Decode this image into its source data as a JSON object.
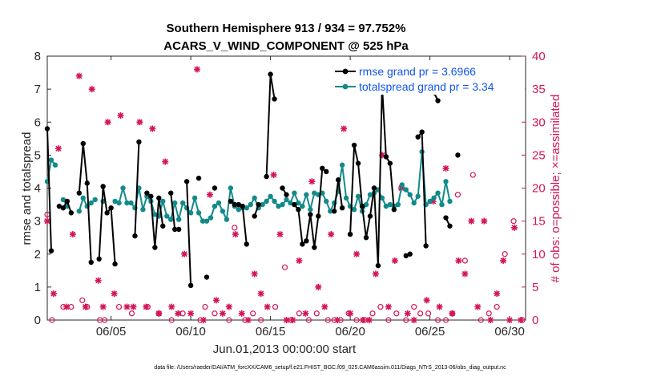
{
  "chart_data": {
    "type": "line",
    "title": "Southern Hemisphere 913 / 934 = 97.752%",
    "subtitle": "ACARS_V_WIND_COMPONENT @ 525 hPa",
    "xlabel": "Jun.01,2013 00:00:00 start",
    "ylabel": "rmse and totalspread",
    "ylabel_right": "# of obs: o=possible; ×=assimilated",
    "footnote": "data file: /Users/raeder/DAI/ATM_forcXX/CAM6_setup/f.e21.FHIST_BGC.f09_025.CAM6assim.011/Diags_NTrS_2013-06/obs_diag_output.nc",
    "xlim": [
      1,
      31
    ],
    "ylim": [
      0,
      8
    ],
    "ylim_right": [
      0,
      40
    ],
    "x_ticks": [
      5,
      10,
      15,
      20,
      25,
      30
    ],
    "x_tick_labels": [
      "06/05",
      "06/10",
      "06/15",
      "06/20",
      "06/25",
      "06/30"
    ],
    "y_ticks": [
      0,
      1,
      2,
      3,
      4,
      5,
      6,
      7,
      8
    ],
    "y_ticks_right": [
      0,
      5,
      10,
      15,
      20,
      25,
      30,
      35,
      40
    ],
    "colors": {
      "rmse": "#000000",
      "spread": "#138a8a",
      "obs": "#d4145a",
      "legend_text": "#1155ee"
    },
    "series": [
      {
        "name": "rmse grand pr = 3.6966",
        "marker": "filled-circle",
        "points": [
          [
            1.0,
            5.8
          ],
          [
            1.25,
            2.1
          ],
          [
            1.5,
            null
          ],
          [
            1.75,
            3.45
          ],
          [
            2.0,
            3.4
          ],
          [
            2.25,
            3.6
          ],
          [
            2.5,
            3.25
          ],
          [
            2.75,
            null
          ],
          [
            3.0,
            3.85
          ],
          [
            3.25,
            5.35
          ],
          [
            3.5,
            4.15
          ],
          [
            3.75,
            1.75
          ],
          [
            4.0,
            null
          ],
          [
            4.25,
            1.85
          ],
          [
            4.5,
            4.05
          ],
          [
            4.75,
            3.25
          ],
          [
            5.0,
            3.4
          ],
          [
            5.25,
            1.7
          ],
          [
            5.5,
            null
          ],
          [
            5.75,
            null
          ],
          [
            6.0,
            null
          ],
          [
            6.25,
            null
          ],
          [
            6.5,
            2.55
          ],
          [
            6.75,
            5.4
          ],
          [
            7.0,
            null
          ],
          [
            7.25,
            3.85
          ],
          [
            7.5,
            3.75
          ],
          [
            7.75,
            2.2
          ],
          [
            8.0,
            3.7
          ],
          [
            8.25,
            2.85
          ],
          [
            8.5,
            null
          ],
          [
            8.75,
            3.85
          ],
          [
            9.0,
            2.75
          ],
          [
            9.25,
            2.75
          ],
          [
            9.5,
            null
          ],
          [
            9.75,
            4.2
          ],
          [
            10.0,
            1.05
          ],
          [
            10.25,
            null
          ],
          [
            10.5,
            4.3
          ],
          [
            10.75,
            null
          ],
          [
            11.0,
            1.3
          ],
          [
            11.25,
            null
          ],
          [
            11.5,
            4.0
          ],
          [
            11.75,
            null
          ],
          [
            12.0,
            null
          ],
          [
            12.25,
            null
          ],
          [
            12.5,
            3.6
          ],
          [
            12.75,
            3.5
          ],
          [
            13.0,
            3.5
          ],
          [
            13.25,
            3.45
          ],
          [
            13.5,
            2.3
          ],
          [
            13.75,
            null
          ],
          [
            14.0,
            3.15
          ],
          [
            14.25,
            3.5
          ],
          [
            14.5,
            null
          ],
          [
            14.75,
            4.35
          ],
          [
            15.0,
            7.45
          ],
          [
            15.25,
            6.7
          ],
          [
            15.5,
            null
          ],
          [
            15.75,
            4.0
          ],
          [
            16.0,
            3.8
          ],
          [
            16.25,
            null
          ],
          [
            16.5,
            3.5
          ],
          [
            16.75,
            3.35
          ],
          [
            17.0,
            2.3
          ],
          [
            17.25,
            2.4
          ],
          [
            17.5,
            3.2
          ],
          [
            17.75,
            2.2
          ],
          [
            18.0,
            3.15
          ],
          [
            18.25,
            4.6
          ],
          [
            18.5,
            4.5
          ],
          [
            18.75,
            null
          ],
          [
            19.0,
            3.3
          ],
          [
            19.25,
            4.25
          ],
          [
            19.5,
            3.4
          ],
          [
            19.75,
            null
          ],
          [
            20.0,
            2.6
          ],
          [
            20.25,
            5.3
          ],
          [
            20.5,
            4.75
          ],
          [
            20.75,
            3.45
          ],
          [
            21.0,
            2.5
          ],
          [
            21.25,
            3.15
          ],
          [
            21.5,
            4.0
          ],
          [
            21.75,
            1.65
          ],
          [
            22.0,
            7.1
          ],
          [
            22.25,
            4.95
          ],
          [
            22.5,
            4.75
          ],
          [
            22.75,
            3.35
          ],
          [
            23.0,
            null
          ],
          [
            23.25,
            null
          ],
          [
            23.5,
            1.95
          ],
          [
            23.75,
            2.0
          ],
          [
            24.0,
            null
          ],
          [
            24.25,
            5.55
          ],
          [
            24.5,
            5.7
          ],
          [
            24.75,
            2.25
          ],
          [
            25.0,
            null
          ],
          [
            25.25,
            6.9
          ],
          [
            25.5,
            6.65
          ],
          [
            25.75,
            null
          ],
          [
            26.0,
            3.1
          ],
          [
            26.25,
            2.85
          ],
          [
            26.5,
            null
          ],
          [
            26.75,
            5.0
          ]
        ]
      },
      {
        "name": "totalspread grand pr = 3.34",
        "marker": "filled-circle",
        "points": [
          [
            1.0,
            4.2
          ],
          [
            1.25,
            4.85
          ],
          [
            1.5,
            4.7
          ],
          [
            1.75,
            null
          ],
          [
            2.0,
            3.65
          ],
          [
            2.25,
            3.45
          ],
          [
            2.5,
            null
          ],
          [
            2.75,
            null
          ],
          [
            3.0,
            3.3
          ],
          [
            3.25,
            3.7
          ],
          [
            3.5,
            3.45
          ],
          [
            3.75,
            3.55
          ],
          [
            4.0,
            3.65
          ],
          [
            4.25,
            null
          ],
          [
            4.5,
            3.6
          ],
          [
            4.75,
            null
          ],
          [
            5.0,
            null
          ],
          [
            5.25,
            3.6
          ],
          [
            5.5,
            3.55
          ],
          [
            5.75,
            4.0
          ],
          [
            6.0,
            3.55
          ],
          [
            6.25,
            3.55
          ],
          [
            6.5,
            3.4
          ],
          [
            6.75,
            4.0
          ],
          [
            7.0,
            3.35
          ],
          [
            7.25,
            3.75
          ],
          [
            7.5,
            3.6
          ],
          [
            7.75,
            3.2
          ],
          [
            8.0,
            3.15
          ],
          [
            8.25,
            3.6
          ],
          [
            8.5,
            3.15
          ],
          [
            8.75,
            3.05
          ],
          [
            9.0,
            3.55
          ],
          [
            9.25,
            3.05
          ],
          [
            9.5,
            3.55
          ],
          [
            9.75,
            3.4
          ],
          [
            10.0,
            3.25
          ],
          [
            10.25,
            3.7
          ],
          [
            10.5,
            3.25
          ],
          [
            10.75,
            3.0
          ],
          [
            11.0,
            3.0
          ],
          [
            11.25,
            3.1
          ],
          [
            11.5,
            3.45
          ],
          [
            11.75,
            3.55
          ],
          [
            12.0,
            3.3
          ],
          [
            12.25,
            3.05
          ],
          [
            12.5,
            4.0
          ],
          [
            12.75,
            3.45
          ],
          [
            13.0,
            3.35
          ],
          [
            13.25,
            3.4
          ],
          [
            13.5,
            3.4
          ],
          [
            13.75,
            3.5
          ],
          [
            14.0,
            3.7
          ],
          [
            14.25,
            3.4
          ],
          [
            14.5,
            3.5
          ],
          [
            14.75,
            3.6
          ],
          [
            15.0,
            3.75
          ],
          [
            15.25,
            3.6
          ],
          [
            15.5,
            3.45
          ],
          [
            15.75,
            3.5
          ],
          [
            16.0,
            3.65
          ],
          [
            16.25,
            3.55
          ],
          [
            16.5,
            3.85
          ],
          [
            16.75,
            3.55
          ],
          [
            17.0,
            3.45
          ],
          [
            17.25,
            3.8
          ],
          [
            17.5,
            3.35
          ],
          [
            17.75,
            3.85
          ],
          [
            18.0,
            3.8
          ],
          [
            18.25,
            3.85
          ],
          [
            18.5,
            3.6
          ],
          [
            18.75,
            3.3
          ],
          [
            19.0,
            3.55
          ],
          [
            19.25,
            3.9
          ],
          [
            19.5,
            4.7
          ],
          [
            19.75,
            3.7
          ],
          [
            20.0,
            3.45
          ],
          [
            20.25,
            3.35
          ],
          [
            20.5,
            3.75
          ],
          [
            20.75,
            3.3
          ],
          [
            21.0,
            3.5
          ],
          [
            21.25,
            3.8
          ],
          [
            21.5,
            3.85
          ],
          [
            21.75,
            3.95
          ],
          [
            22.0,
            3.7
          ],
          [
            22.25,
            3.45
          ],
          [
            22.5,
            3.5
          ],
          [
            22.75,
            3.45
          ],
          [
            23.0,
            3.5
          ],
          [
            23.25,
            4.1
          ],
          [
            23.5,
            3.95
          ],
          [
            23.75,
            3.8
          ],
          [
            24.0,
            3.55
          ],
          [
            24.25,
            3.75
          ],
          [
            24.5,
            5.1
          ],
          [
            24.75,
            3.5
          ],
          [
            25.0,
            3.6
          ],
          [
            25.25,
            3.7
          ],
          [
            25.5,
            3.85
          ],
          [
            25.75,
            3.5
          ],
          [
            26.0,
            4.2
          ],
          [
            26.25,
            3.6
          ]
        ]
      }
    ],
    "obs_possible_points": [
      [
        1.0,
        16
      ],
      [
        1.3,
        0
      ],
      [
        2.0,
        2
      ],
      [
        2.5,
        2
      ],
      [
        3.2,
        3
      ],
      [
        3.5,
        2
      ],
      [
        4.3,
        0
      ],
      [
        4.6,
        0
      ],
      [
        5.5,
        2
      ],
      [
        6.3,
        1
      ],
      [
        7.3,
        2
      ],
      [
        8.0,
        1
      ],
      [
        8.8,
        0
      ],
      [
        9.5,
        1
      ],
      [
        10.6,
        0
      ],
      [
        10.9,
        2
      ],
      [
        11.5,
        1
      ],
      [
        12.4,
        0
      ],
      [
        12.75,
        14
      ],
      [
        13.4,
        0
      ],
      [
        13.9,
        1
      ],
      [
        14.4,
        0
      ],
      [
        15.3,
        2
      ],
      [
        15.9,
        8
      ],
      [
        16.3,
        0
      ],
      [
        16.8,
        1
      ],
      [
        17.4,
        0
      ],
      [
        17.9,
        1
      ],
      [
        18.6,
        0
      ],
      [
        19.0,
        0
      ],
      [
        19.4,
        0
      ],
      [
        19.9,
        1
      ],
      [
        20.4,
        0
      ],
      [
        20.9,
        0
      ],
      [
        21.4,
        1
      ],
      [
        21.9,
        2
      ],
      [
        22.4,
        0
      ],
      [
        22.9,
        1
      ],
      [
        23.5,
        0
      ],
      [
        24.0,
        2
      ],
      [
        24.4,
        1
      ],
      [
        24.9,
        1
      ],
      [
        25.5,
        0
      ],
      [
        26.0,
        0
      ],
      [
        26.4,
        1
      ],
      [
        26.75,
        19
      ],
      [
        27.2,
        9
      ],
      [
        27.7,
        22
      ],
      [
        28.2,
        0
      ],
      [
        28.7,
        1
      ],
      [
        29.2,
        2
      ],
      [
        29.7,
        10
      ],
      [
        30.25,
        15
      ],
      [
        30.8,
        0
      ]
    ],
    "obs_assimilated_points": [
      [
        1.0,
        15
      ],
      [
        1.4,
        4
      ],
      [
        1.7,
        26
      ],
      [
        2.2,
        2
      ],
      [
        2.6,
        13
      ],
      [
        3.0,
        37
      ],
      [
        3.4,
        2
      ],
      [
        3.8,
        35
      ],
      [
        4.2,
        6
      ],
      [
        4.5,
        2
      ],
      [
        4.8,
        30
      ],
      [
        5.2,
        4
      ],
      [
        5.6,
        31
      ],
      [
        6.0,
        2
      ],
      [
        6.4,
        2
      ],
      [
        6.8,
        30
      ],
      [
        7.2,
        2
      ],
      [
        7.6,
        29
      ],
      [
        8.0,
        1
      ],
      [
        8.4,
        24
      ],
      [
        8.8,
        2
      ],
      [
        9.2,
        1
      ],
      [
        9.6,
        10
      ],
      [
        10.0,
        1
      ],
      [
        10.4,
        38
      ],
      [
        10.8,
        0
      ],
      [
        11.2,
        19
      ],
      [
        11.6,
        3
      ],
      [
        12.0,
        1
      ],
      [
        12.4,
        2
      ],
      [
        12.8,
        13
      ],
      [
        13.2,
        1
      ],
      [
        13.6,
        0
      ],
      [
        14.0,
        7
      ],
      [
        14.4,
        4
      ],
      [
        14.8,
        2
      ],
      [
        15.2,
        22
      ],
      [
        15.6,
        13
      ],
      [
        16.0,
        0
      ],
      [
        16.4,
        0
      ],
      [
        16.8,
        9
      ],
      [
        17.2,
        1
      ],
      [
        17.6,
        21
      ],
      [
        18.0,
        5
      ],
      [
        18.4,
        2
      ],
      [
        18.8,
        13
      ],
      [
        19.2,
        0
      ],
      [
        19.6,
        29
      ],
      [
        20.0,
        1
      ],
      [
        20.4,
        10
      ],
      [
        20.8,
        0
      ],
      [
        21.2,
        0
      ],
      [
        21.6,
        7
      ],
      [
        22.0,
        25
      ],
      [
        22.4,
        2
      ],
      [
        22.8,
        9
      ],
      [
        23.2,
        20
      ],
      [
        23.6,
        1
      ],
      [
        24.0,
        0
      ],
      [
        24.4,
        36
      ],
      [
        24.8,
        3
      ],
      [
        25.2,
        18
      ],
      [
        25.6,
        2
      ],
      [
        26.0,
        23
      ],
      [
        26.4,
        1
      ],
      [
        26.8,
        9
      ],
      [
        27.2,
        7
      ],
      [
        27.6,
        15
      ],
      [
        28.0,
        2
      ],
      [
        28.4,
        15
      ],
      [
        28.8,
        0
      ],
      [
        29.2,
        4
      ],
      [
        29.6,
        9
      ],
      [
        30.0,
        0
      ],
      [
        30.3,
        14
      ],
      [
        30.7,
        0
      ]
    ],
    "legend": [
      {
        "label": "rmse grand pr = 3.6966",
        "color": "#000000"
      },
      {
        "label": "totalspread grand pr = 3.34",
        "color": "#138a8a"
      }
    ],
    "legend_placement": "top-right"
  }
}
